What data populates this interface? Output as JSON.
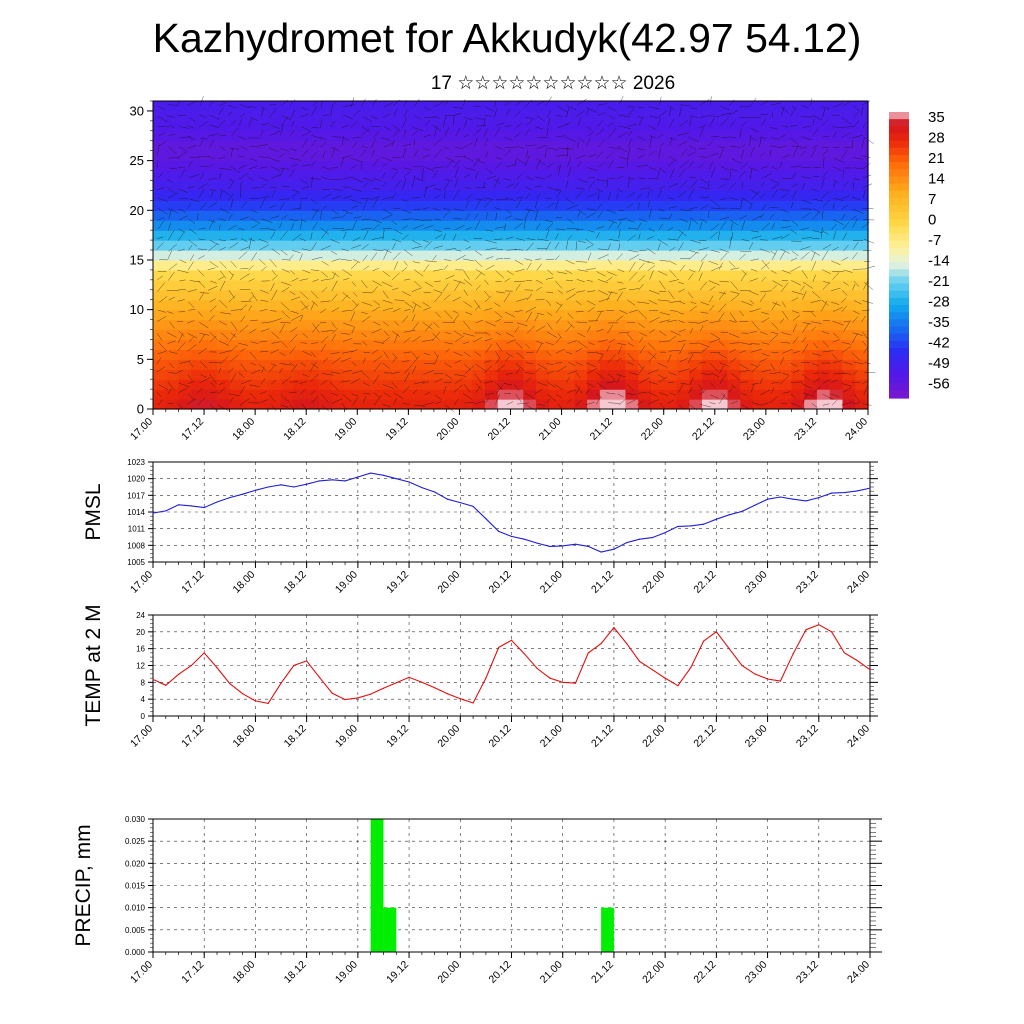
{
  "title": "Kazhydromet for Akkudyk(42.97 54.12)",
  "subtitle": "17 ☆☆☆☆☆☆☆☆☆☆ 2026",
  "colors": {
    "pmsl_line": "#1f1fd6",
    "temp_line": "#e01010",
    "precip_bar": "#00ee00",
    "grid": "#000000"
  },
  "time_axis": {
    "tick_labels": [
      "17.00",
      "17.12",
      "18.00",
      "18.12",
      "19.00",
      "19.12",
      "20.00",
      "20.12",
      "21.00",
      "21.12",
      "22.00",
      "22.12",
      "23.00",
      "23.12",
      "24.00"
    ],
    "range_hours": [
      0,
      168
    ]
  },
  "chart_data": [
    {
      "type": "heatmap",
      "name": "temperature-cross-section",
      "ylabel": "",
      "ylim": [
        0,
        31
      ],
      "y_tick_labels": [
        "0",
        "5",
        "10",
        "15",
        "20",
        "25",
        "30"
      ],
      "description_variable": "air temperature with wind barbs vs height",
      "colorbar": {
        "tick_labels": [
          "35",
          "28",
          "21",
          "14",
          "7",
          "0",
          "-7",
          "-14",
          "-21",
          "-28",
          "-35",
          "-42",
          "-49",
          "-56"
        ],
        "range": [
          -60,
          38
        ]
      },
      "profile_by_height": [
        {
          "h": 0,
          "t": 30
        },
        {
          "h": 5,
          "t": 22
        },
        {
          "h": 10,
          "t": 10
        },
        {
          "h": 14,
          "t": -2
        },
        {
          "h": 15,
          "t": -12
        },
        {
          "h": 17,
          "t": -24
        },
        {
          "h": 20,
          "t": -40
        },
        {
          "h": 22,
          "t": -48
        },
        {
          "h": 24,
          "t": -52
        },
        {
          "h": 26,
          "t": -56
        },
        {
          "h": 28,
          "t": -52
        },
        {
          "h": 31,
          "t": -50
        }
      ],
      "surface_warm_days": [
        {
          "center_hours": 12,
          "boost": 6
        },
        {
          "center_hours": 36,
          "boost": 4
        },
        {
          "center_hours": 84,
          "boost": 12
        },
        {
          "center_hours": 108,
          "boost": 14
        },
        {
          "center_hours": 132,
          "boost": 12
        },
        {
          "center_hours": 158,
          "boost": 12
        }
      ]
    },
    {
      "type": "line",
      "name": "PMSL",
      "ylabel": "PMSL",
      "ylim": [
        1005,
        1023
      ],
      "y_tick_labels": [
        "1023",
        "1020",
        "1017",
        "1014",
        "1011",
        "1008",
        "1005"
      ],
      "x": [
        0,
        3,
        6,
        9,
        12,
        15,
        18,
        21,
        24,
        27,
        30,
        33,
        36,
        39,
        42,
        45,
        48,
        51,
        54,
        57,
        60,
        63,
        66,
        69,
        72,
        75,
        78,
        81,
        84,
        87,
        90,
        93,
        96,
        99,
        102,
        105,
        108,
        111,
        114,
        117,
        120,
        123,
        126,
        129,
        132,
        135,
        138,
        141,
        144,
        147,
        150,
        153,
        156,
        159,
        162,
        165,
        168
      ],
      "values": [
        1013.8,
        1014.2,
        1015.3,
        1015.1,
        1014.8,
        1015.8,
        1016.6,
        1017.2,
        1017.9,
        1018.5,
        1018.9,
        1018.5,
        1019.0,
        1019.6,
        1019.8,
        1019.6,
        1020.3,
        1021.0,
        1020.6,
        1020.0,
        1019.4,
        1018.4,
        1017.6,
        1016.3,
        1015.7,
        1015.0,
        1012.8,
        1010.5,
        1009.6,
        1009.1,
        1008.4,
        1007.8,
        1007.9,
        1008.2,
        1007.8,
        1006.8,
        1007.3,
        1008.5,
        1009.1,
        1009.4,
        1010.3,
        1011.4,
        1011.5,
        1011.8,
        1012.7,
        1013.5,
        1014.1,
        1015.2,
        1016.3,
        1016.7,
        1016.3,
        1016.0,
        1016.6,
        1017.4,
        1017.5,
        1017.8,
        1018.3
      ]
    },
    {
      "type": "line",
      "name": "TEMP at 2 M",
      "ylabel": "TEMP at 2 M",
      "ylim": [
        0,
        24
      ],
      "y_tick_labels": [
        "24",
        "20",
        "16",
        "12",
        "8",
        "4",
        "0"
      ],
      "x": [
        0,
        3,
        6,
        9,
        12,
        15,
        18,
        21,
        24,
        27,
        30,
        33,
        36,
        39,
        42,
        45,
        48,
        51,
        54,
        57,
        60,
        63,
        66,
        69,
        72,
        75,
        78,
        81,
        84,
        87,
        90,
        93,
        96,
        99,
        102,
        105,
        108,
        111,
        114,
        117,
        120,
        123,
        126,
        129,
        132,
        135,
        138,
        141,
        144,
        147,
        150,
        153,
        156,
        159,
        162,
        165,
        168
      ],
      "values": [
        8.7,
        7.3,
        9.9,
        12.0,
        15.0,
        11.5,
        7.7,
        5.3,
        3.6,
        3.0,
        7.8,
        12.0,
        13.1,
        9.2,
        5.4,
        3.9,
        4.3,
        5.2,
        6.6,
        7.9,
        9.2,
        8.0,
        6.7,
        5.3,
        4.1,
        3.1,
        9.0,
        16.3,
        18.0,
        14.8,
        11.3,
        9.0,
        8.0,
        7.8,
        15.0,
        17.2,
        21.0,
        17.2,
        13.0,
        11.0,
        9.0,
        7.2,
        11.5,
        17.8,
        20.0,
        16.0,
        12.0,
        10.0,
        8.8,
        8.3,
        14.8,
        20.5,
        21.7,
        20.0,
        15.0,
        13.2,
        11.0
      ]
    },
    {
      "type": "bar",
      "name": "PRECIP, mm",
      "ylabel": "PRECIP, mm",
      "ylim": [
        0,
        0.03
      ],
      "y_tick_labels": [
        "0.030",
        "0.025",
        "0.020",
        "0.015",
        "0.010",
        "0.005",
        "0.000"
      ],
      "bars": [
        {
          "start_hours": 51,
          "end_hours": 54,
          "value": 0.03
        },
        {
          "start_hours": 54,
          "end_hours": 57,
          "value": 0.01
        },
        {
          "start_hours": 105,
          "end_hours": 108,
          "value": 0.01
        }
      ]
    }
  ]
}
